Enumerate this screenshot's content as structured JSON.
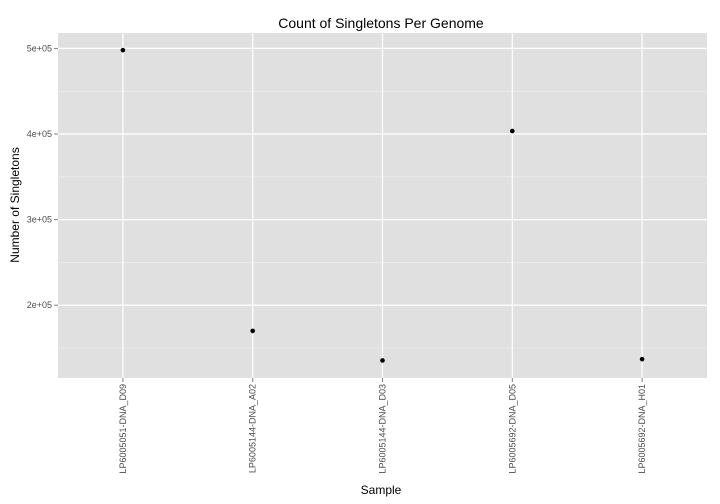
{
  "chart_data": {
    "type": "scatter",
    "title": "Count of Singletons Per Genome",
    "xlabel": "Sample",
    "ylabel": "Number of Singletons",
    "categories": [
      "LP6005051-DNA_D09",
      "LP6005144-DNA_A02",
      "LP6005144-DNA_D03",
      "LP6005692-DNA_D05",
      "LP6005692-DNA_H01"
    ],
    "values": [
      498000,
      170000,
      135500,
      403500,
      137000
    ],
    "yticks": [
      200000,
      300000,
      400000,
      500000
    ],
    "ytick_labels": [
      "2e+05",
      "3e+05",
      "4e+05",
      "5e+05"
    ],
    "ylim": [
      115000,
      518000
    ],
    "grid": true,
    "colors": {
      "panel": "#e0e0e0",
      "grid_major": "#ffffff",
      "grid_minor": "#ececec",
      "point": "#000000"
    }
  }
}
